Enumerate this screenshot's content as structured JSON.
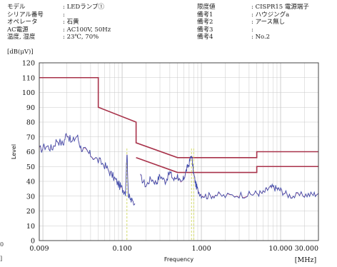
{
  "header": {
    "left": [
      {
        "key": "モデル",
        "value": ": LEDランプ①"
      },
      {
        "key": "シリアル番号",
        "value": ":"
      },
      {
        "key": "オペレータ",
        "value": ": 石黄"
      },
      {
        "key": "AC電源",
        "value": ": AC100V, 50Hz"
      },
      {
        "key": "温度, 湿度",
        "value": ": 23℃, 70%"
      }
    ],
    "right": [
      {
        "key": "限度値",
        "value": ": CISPR15 電源端子"
      },
      {
        "key": "備考1",
        "value": ": ハウジングa"
      },
      {
        "key": "備考2",
        "value": ": アース無し"
      },
      {
        "key": "備考3",
        "value": ":"
      },
      {
        "key": "備考4",
        "value": ": No.2"
      }
    ]
  },
  "side_fragments": [
    "0",
    "]"
  ],
  "colors": {
    "limit": "#a8324a",
    "trace_blue": "#3a4fb0",
    "trace_pink": "#c0507a",
    "marker": "#c8d24a",
    "grid": "#c8c8c8"
  },
  "chart_data": {
    "type": "line",
    "unit_label": "[dB(μV)]",
    "xlabel": "Frequency",
    "xunit": "[MHz]",
    "ylabel": "Level",
    "xscale": "log",
    "xlim": [
      0.009,
      30
    ],
    "ylim": [
      0,
      120
    ],
    "yticks": [
      0,
      10,
      20,
      30,
      40,
      50,
      60,
      70,
      80,
      90,
      100,
      110,
      120
    ],
    "xticks": [
      {
        "v": 0.009,
        "label": "0.009"
      },
      {
        "v": 0.1,
        "label": "0.100"
      },
      {
        "v": 1,
        "label": "1.000"
      },
      {
        "v": 10,
        "label": "10.000"
      },
      {
        "v": 30,
        "label": "30.000"
      }
    ],
    "grid": true,
    "limits": [
      {
        "points": [
          [
            0.009,
            110
          ],
          [
            0.05,
            110
          ],
          [
            0.05,
            90
          ],
          [
            0.15,
            80
          ],
          [
            0.15,
            66
          ],
          [
            0.5,
            56
          ],
          [
            5,
            56
          ],
          [
            5,
            60
          ],
          [
            30,
            60
          ]
        ]
      },
      {
        "points": [
          [
            0.15,
            56
          ],
          [
            0.5,
            46
          ],
          [
            5,
            46
          ],
          [
            5,
            50
          ],
          [
            30,
            50
          ]
        ]
      }
    ],
    "markers": [
      {
        "x": 0.115
      },
      {
        "x": 0.75
      },
      {
        "x": 0.8
      }
    ],
    "measurement": [
      {
        "f": 0.009,
        "y": 61
      },
      {
        "f": 0.011,
        "y": 64
      },
      {
        "f": 0.013,
        "y": 62
      },
      {
        "f": 0.015,
        "y": 68
      },
      {
        "f": 0.018,
        "y": 65
      },
      {
        "f": 0.02,
        "y": 73
      },
      {
        "f": 0.023,
        "y": 66
      },
      {
        "f": 0.027,
        "y": 71
      },
      {
        "f": 0.03,
        "y": 63
      },
      {
        "f": 0.035,
        "y": 60
      },
      {
        "f": 0.04,
        "y": 58
      },
      {
        "f": 0.05,
        "y": 54
      },
      {
        "f": 0.06,
        "y": 51
      },
      {
        "f": 0.07,
        "y": 46
      },
      {
        "f": 0.08,
        "y": 42
      },
      {
        "f": 0.09,
        "y": 38
      },
      {
        "f": 0.1,
        "y": 35
      },
      {
        "f": 0.11,
        "y": 33
      },
      {
        "f": 0.115,
        "y": 60
      },
      {
        "f": 0.12,
        "y": 30
      },
      {
        "f": 0.13,
        "y": 27
      },
      {
        "f": 0.145,
        "y": 25
      }
    ],
    "measurement2": [
      {
        "f": 0.17,
        "y": 43
      },
      {
        "f": 0.2,
        "y": 37
      },
      {
        "f": 0.23,
        "y": 42
      },
      {
        "f": 0.27,
        "y": 39
      },
      {
        "f": 0.3,
        "y": 44
      },
      {
        "f": 0.35,
        "y": 40
      },
      {
        "f": 0.4,
        "y": 46
      },
      {
        "f": 0.45,
        "y": 41
      },
      {
        "f": 0.5,
        "y": 44
      },
      {
        "f": 0.55,
        "y": 38
      },
      {
        "f": 0.6,
        "y": 42
      },
      {
        "f": 0.65,
        "y": 48
      },
      {
        "f": 0.7,
        "y": 52
      },
      {
        "f": 0.75,
        "y": 58
      },
      {
        "f": 0.8,
        "y": 45
      },
      {
        "f": 0.85,
        "y": 38
      },
      {
        "f": 0.9,
        "y": 34
      },
      {
        "f": 1.0,
        "y": 31
      },
      {
        "f": 1.2,
        "y": 30
      },
      {
        "f": 1.5,
        "y": 31
      },
      {
        "f": 2,
        "y": 30
      },
      {
        "f": 3,
        "y": 31
      },
      {
        "f": 4,
        "y": 31
      },
      {
        "f": 5,
        "y": 32
      },
      {
        "f": 6,
        "y": 32
      },
      {
        "f": 7,
        "y": 35
      },
      {
        "f": 8,
        "y": 36
      },
      {
        "f": 9,
        "y": 35
      },
      {
        "f": 10,
        "y": 34
      },
      {
        "f": 12,
        "y": 31
      },
      {
        "f": 15,
        "y": 30
      },
      {
        "f": 20,
        "y": 31
      },
      {
        "f": 25,
        "y": 31
      },
      {
        "f": 30,
        "y": 32
      }
    ]
  }
}
